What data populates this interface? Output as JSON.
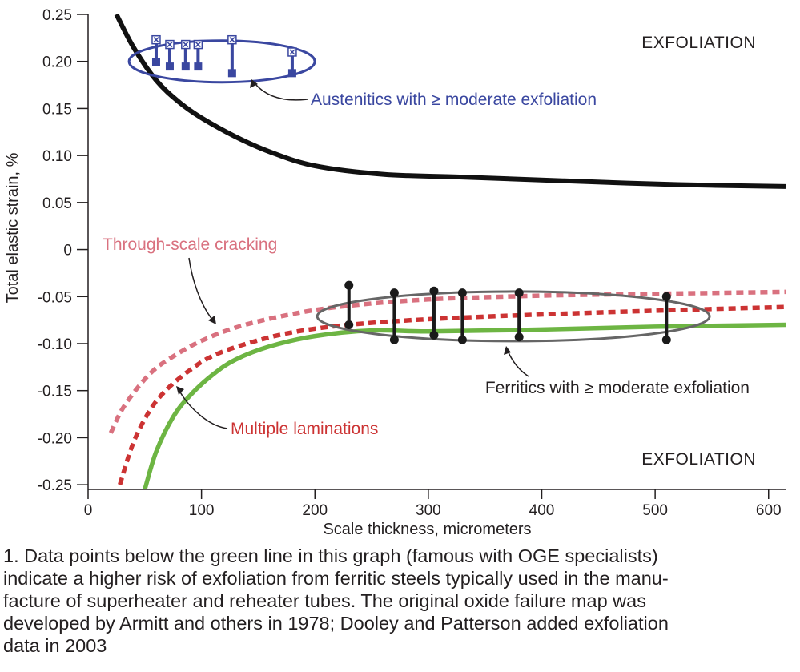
{
  "chart_data": {
    "type": "line",
    "xlabel": "Scale thickness, micrometers",
    "ylabel": "Total elastic strain, %",
    "xlim": [
      0,
      615
    ],
    "ylim": [
      -0.255,
      0.25
    ],
    "x_ticks": [
      0,
      100,
      200,
      300,
      400,
      500,
      600
    ],
    "x_tick_labels": [
      "0",
      "100",
      "200",
      "300",
      "400",
      "500",
      "600"
    ],
    "y_ticks": [
      0.25,
      0.2,
      0.15,
      0.1,
      0.05,
      0,
      -0.05,
      -0.1,
      -0.15,
      -0.2,
      -0.25
    ],
    "y_tick_labels": [
      "0.25",
      "0.20",
      "0.15",
      "0.10",
      "0.05",
      "0",
      "-0.05",
      "-0.10",
      "-0.15",
      "-0.20",
      "-0.25"
    ],
    "grid": false,
    "region_labels": [
      "EXFOLIATION",
      "EXFOLIATION"
    ],
    "colors": {
      "exfoliation_curve": "#111111",
      "through_scale_cracking": "#d9717f",
      "multiple_laminations": "#cc3333",
      "green_line": "#6db543",
      "austenitic": "#3a47a0",
      "ferritic": "#1a1a1a",
      "ellipse": "#666666"
    },
    "series": [
      {
        "key": "exfoliation_curve",
        "style": "solid",
        "x": [
          25,
          40,
          60,
          80,
          100,
          130,
          160,
          200,
          260,
          330,
          420,
          520,
          615
        ],
        "y": [
          0.25,
          0.215,
          0.18,
          0.157,
          0.14,
          0.12,
          0.104,
          0.089,
          0.08,
          0.077,
          0.073,
          0.069,
          0.067
        ]
      },
      {
        "key": "through_scale_cracking",
        "name": "Through-scale cracking",
        "style": "dashed",
        "x": [
          20,
          30,
          45,
          60,
          80,
          100,
          130,
          170,
          220,
          300,
          400,
          500,
          615
        ],
        "y": [
          -0.195,
          -0.17,
          -0.145,
          -0.126,
          -0.11,
          -0.097,
          -0.083,
          -0.071,
          -0.061,
          -0.053,
          -0.049,
          -0.047,
          -0.045
        ]
      },
      {
        "key": "multiple_laminations",
        "name": "Multiple laminations",
        "style": "dashed",
        "x": [
          28,
          40,
          55,
          70,
          90,
          110,
          140,
          180,
          230,
          300,
          400,
          500,
          615
        ],
        "y": [
          -0.25,
          -0.205,
          -0.17,
          -0.148,
          -0.128,
          -0.113,
          -0.1,
          -0.088,
          -0.08,
          -0.074,
          -0.069,
          -0.065,
          -0.061
        ]
      },
      {
        "key": "green_line",
        "style": "solid",
        "x": [
          50,
          60,
          75,
          90,
          110,
          130,
          160,
          200,
          250,
          300,
          400,
          500,
          615
        ],
        "y": [
          -0.255,
          -0.215,
          -0.178,
          -0.155,
          -0.133,
          -0.117,
          -0.103,
          -0.092,
          -0.086,
          -0.087,
          -0.085,
          -0.082,
          -0.08
        ]
      }
    ],
    "austenitic_points": {
      "name": "Austenitics with ≥ moderate exfoliation",
      "bars": [
        {
          "x": 60,
          "y_low": 0.197,
          "y_high": 0.223
        },
        {
          "x": 72,
          "y_low": 0.192,
          "y_high": 0.218
        },
        {
          "x": 86,
          "y_low": 0.192,
          "y_high": 0.218
        },
        {
          "x": 97,
          "y_low": 0.192,
          "y_high": 0.218
        },
        {
          "x": 127,
          "y_low": 0.185,
          "y_high": 0.223
        },
        {
          "x": 180,
          "y_low": 0.185,
          "y_high": 0.21
        }
      ]
    },
    "ferritic_points": {
      "name": "Ferritics with ≥ moderate exfoliation",
      "bars": [
        {
          "x": 230,
          "y_low": -0.08,
          "y_high": -0.038
        },
        {
          "x": 270,
          "y_low": -0.096,
          "y_high": -0.046
        },
        {
          "x": 305,
          "y_low": -0.091,
          "y_high": -0.044
        },
        {
          "x": 330,
          "y_low": -0.096,
          "y_high": -0.046
        },
        {
          "x": 380,
          "y_low": -0.093,
          "y_high": -0.046
        },
        {
          "x": 510,
          "y_low": -0.096,
          "y_high": -0.05
        }
      ]
    },
    "annotations": {
      "austenitic_label": "Austenitics with ≥ moderate exfoliation",
      "ferritic_label": "Ferritics with ≥ moderate exfoliation",
      "through_scale_label": "Through-scale cracking",
      "laminations_label": "Multiple laminations"
    }
  },
  "caption": "1. Data points below the green line in this graph (famous with OGE specialists)\nindicate a higher risk of exfoliation from ferritic steels typically used in the manu-\nfacture of superheater and reheater tubes. The original oxide failure map was\ndeveloped by Armitt and others in 1978; Dooley and Patterson added exfoliation\ndata in 2003"
}
